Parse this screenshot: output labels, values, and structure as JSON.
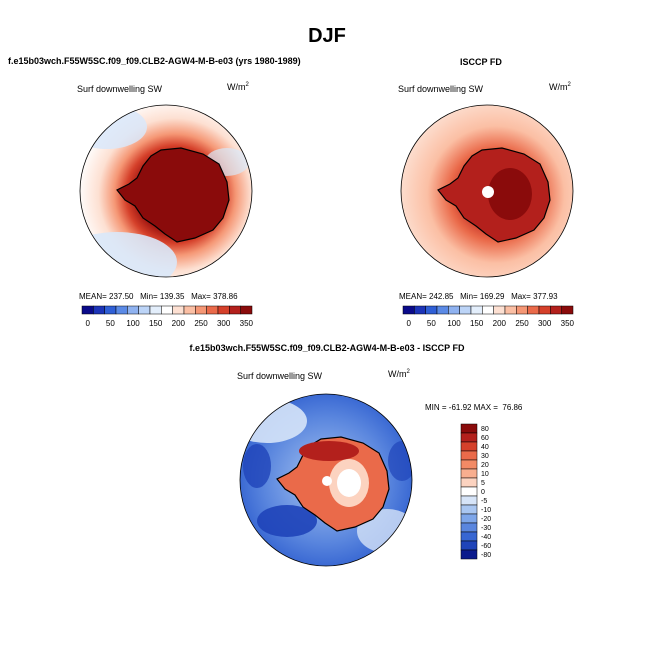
{
  "page": {
    "title": "DJF",
    "model_label": "f.e15b03wch.F55W5SC.f09_f09.CLB2-AGW4-M-B-e03 (yrs 1980-1989)",
    "obs_label": "ISCCP FD",
    "diff_label": "f.e15b03wch.F55W5SC.f09_f09.CLB2-AGW4-M-B-e03 - ISCCP FD"
  },
  "chart_data": [
    {
      "type": "heatmap",
      "projection": "south-polar-stereographic",
      "title": "Surf downwelling SW",
      "units_base": "W/m",
      "units_exp": "2",
      "stats": {
        "mean": "237.50",
        "min": "139.35",
        "max": "378.86"
      },
      "stats_text": "MEAN= 237.50   Min= 139.35   Max= 378.86",
      "colorbar": {
        "levels": [
          0,
          25,
          50,
          75,
          100,
          125,
          150,
          175,
          200,
          225,
          250,
          275,
          300,
          325,
          350
        ],
        "tick_labels": [
          "0",
          "50",
          "100",
          "150",
          "200",
          "250",
          "300",
          "350"
        ],
        "colors": [
          "#0a0a8a",
          "#1c34b8",
          "#2f5fd6",
          "#5b8ae6",
          "#8fb2f0",
          "#bcd4f7",
          "#e3eefb",
          "#ffffff",
          "#fde0d2",
          "#fbbfa4",
          "#f59775",
          "#ea6a4a",
          "#d5402a",
          "#b3201c",
          "#8a0b0b"
        ]
      }
    },
    {
      "type": "heatmap",
      "projection": "south-polar-stereographic",
      "title": "Surf downwelling SW",
      "units_base": "W/m",
      "units_exp": "2",
      "stats": {
        "mean": "242.85",
        "min": "169.29",
        "max": "377.93"
      },
      "stats_text": "MEAN= 242.85   Min= 169.29   Max= 377.93",
      "colorbar": {
        "levels": [
          0,
          25,
          50,
          75,
          100,
          125,
          150,
          175,
          200,
          225,
          250,
          275,
          300,
          325,
          350
        ],
        "tick_labels": [
          "0",
          "50",
          "100",
          "150",
          "200",
          "250",
          "300",
          "350"
        ],
        "colors": [
          "#0a0a8a",
          "#1c34b8",
          "#2f5fd6",
          "#5b8ae6",
          "#8fb2f0",
          "#bcd4f7",
          "#e3eefb",
          "#ffffff",
          "#fde0d2",
          "#fbbfa4",
          "#f59775",
          "#ea6a4a",
          "#d5402a",
          "#b3201c",
          "#8a0b0b"
        ]
      }
    },
    {
      "type": "heatmap",
      "projection": "south-polar-stereographic",
      "title": "Surf downwelling SW",
      "units_base": "W/m",
      "units_exp": "2",
      "stats": {
        "min": "-61.92",
        "max": "76.86"
      },
      "stats_text": "MIN = -61.92 MAX =  76.86",
      "colorbar": {
        "orientation": "vertical",
        "levels": [
          80,
          60,
          40,
          30,
          20,
          10,
          5,
          0,
          -5,
          -10,
          -20,
          -30,
          -40,
          -60,
          -80
        ],
        "tick_labels": [
          "80",
          "60",
          "40",
          "30",
          "20",
          "10",
          "5",
          "0",
          "-5",
          "-10",
          "-20",
          "-30",
          "-40",
          "-60",
          "-80"
        ],
        "colors": [
          "#8a0b0b",
          "#b3201c",
          "#d5402a",
          "#ea6a4a",
          "#f28a65",
          "#f8ae8f",
          "#fcd3c0",
          "#ffffff",
          "#d6e4f8",
          "#a9c6f1",
          "#7ea6e9",
          "#5a86de",
          "#3766d2",
          "#1f44b9",
          "#0a1a8c"
        ]
      }
    }
  ]
}
